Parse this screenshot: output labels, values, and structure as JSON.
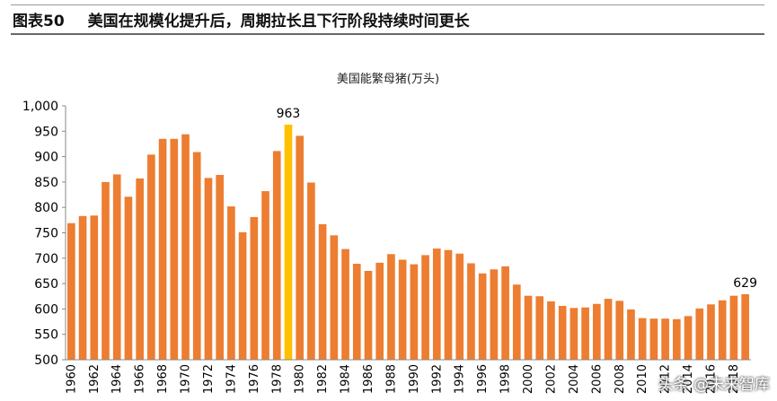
{
  "header": {
    "figure_number": "图表50",
    "title": "美国在规模化提升后，周期拉长且下行阶段持续时间更长"
  },
  "watermark": "头条 @未来智库",
  "colors": {
    "bar": "#ED7D31",
    "highlight": "#FFC000",
    "text": "#000000"
  },
  "chart_data": {
    "type": "bar",
    "title": "美国能繁母猪(万头)",
    "xlabel": "",
    "ylabel": "",
    "ylim": [
      500,
      1000
    ],
    "yticks": [
      500,
      550,
      600,
      650,
      700,
      750,
      800,
      850,
      900,
      950,
      1000
    ],
    "ytick_labels": [
      "500",
      "550",
      "600",
      "650",
      "700",
      "750",
      "800",
      "850",
      "900",
      "950",
      "1,000"
    ],
    "grid": false,
    "legend": "none",
    "x": [
      1960,
      1961,
      1962,
      1963,
      1964,
      1965,
      1966,
      1967,
      1968,
      1969,
      1970,
      1971,
      1972,
      1973,
      1974,
      1975,
      1976,
      1977,
      1978,
      1979,
      1980,
      1981,
      1982,
      1983,
      1984,
      1985,
      1986,
      1987,
      1988,
      1989,
      1990,
      1991,
      1992,
      1993,
      1994,
      1995,
      1996,
      1997,
      1998,
      1999,
      2000,
      2001,
      2002,
      2003,
      2004,
      2005,
      2006,
      2007,
      2008,
      2009,
      2010,
      2011,
      2012,
      2013,
      2014,
      2015,
      2016,
      2017,
      2018,
      2019
    ],
    "xtick_labels": [
      "1960",
      "1962",
      "1964",
      "1966",
      "1968",
      "1970",
      "1972",
      "1974",
      "1976",
      "1978",
      "1980",
      "1982",
      "1984",
      "1986",
      "1988",
      "1990",
      "1992",
      "1994",
      "1996",
      "1998",
      "2000",
      "2002",
      "2004",
      "2006",
      "2008",
      "2010",
      "2012",
      "2014",
      "2016",
      "2018"
    ],
    "values": [
      769,
      783,
      784,
      850,
      865,
      821,
      857,
      904,
      935,
      935,
      944,
      909,
      858,
      864,
      802,
      751,
      781,
      832,
      911,
      963,
      941,
      849,
      767,
      745,
      718,
      689,
      675,
      691,
      708,
      697,
      688,
      706,
      719,
      716,
      709,
      690,
      670,
      678,
      684,
      648,
      626,
      625,
      615,
      606,
      602,
      603,
      610,
      620,
      616,
      599,
      582,
      581,
      581,
      580,
      586,
      601,
      609,
      617,
      626,
      629
    ],
    "highlight_index": 19,
    "data_labels": [
      {
        "index": 19,
        "text": "963"
      },
      {
        "index": 59,
        "text": "629"
      }
    ]
  }
}
